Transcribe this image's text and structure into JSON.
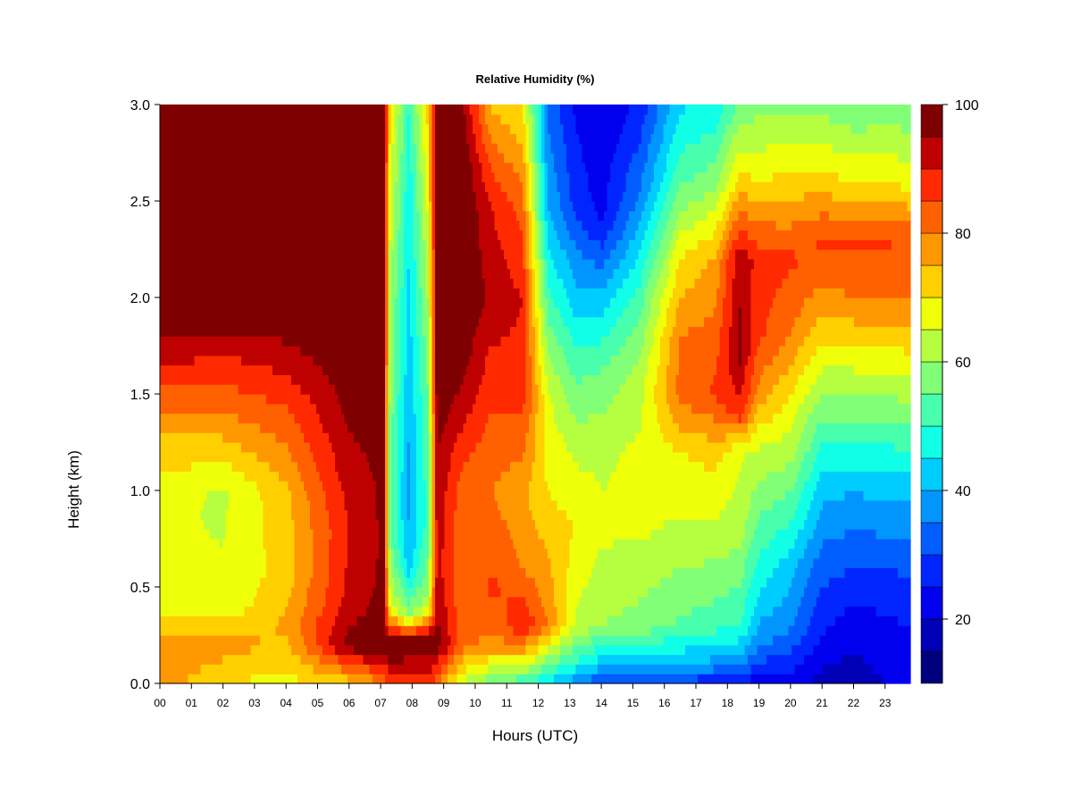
{
  "chart_data": {
    "type": "heatmap",
    "title": "Relative Humidity (%)",
    "xlabel": "Hours (UTC)",
    "ylabel": "Height (km)",
    "x_ticks": [
      "00",
      "01",
      "02",
      "03",
      "04",
      "05",
      "06",
      "07",
      "08",
      "09",
      "10",
      "11",
      "12",
      "13",
      "14",
      "15",
      "16",
      "17",
      "18",
      "19",
      "20",
      "21",
      "22",
      "23"
    ],
    "xlim": [
      0,
      23.8
    ],
    "ylim": [
      0,
      3.0
    ],
    "y_ticks": [
      "0.0",
      "0.5",
      "1.0",
      "1.5",
      "2.0",
      "2.5",
      "3.0"
    ],
    "colorbar": {
      "range": [
        10,
        100
      ],
      "step": 5,
      "ticks": [
        "20",
        "40",
        "60",
        "80",
        "100"
      ],
      "colors": [
        "#00007f",
        "#0000b6",
        "#0000ee",
        "#0025ff",
        "#005dff",
        "#0095ff",
        "#00cdff",
        "#10ffe6",
        "#48ffae",
        "#80ff77",
        "#b6ff40",
        "#eeff09",
        "#ffcf00",
        "#ff9800",
        "#ff6100",
        "#ff2a00",
        "#bf0000",
        "#7f0000"
      ]
    },
    "profiles": [
      {
        "hour": 0.0,
        "rh": [
          {
            "h": 0.0,
            "v": 78
          },
          {
            "h": 0.15,
            "v": 80
          },
          {
            "h": 0.4,
            "v": 66
          },
          {
            "h": 0.9,
            "v": 66
          },
          {
            "h": 1.3,
            "v": 75
          },
          {
            "h": 1.6,
            "v": 88
          },
          {
            "h": 1.9,
            "v": 100
          },
          {
            "h": 3.0,
            "v": 100
          }
        ]
      },
      {
        "hour": 2.0,
        "rh": [
          {
            "h": 0.0,
            "v": 70
          },
          {
            "h": 0.2,
            "v": 78
          },
          {
            "h": 0.4,
            "v": 66
          },
          {
            "h": 1.0,
            "v": 64
          },
          {
            "h": 1.4,
            "v": 80
          },
          {
            "h": 1.7,
            "v": 90
          },
          {
            "h": 1.95,
            "v": 100
          },
          {
            "h": 3.0,
            "v": 100
          }
        ]
      },
      {
        "hour": 4.0,
        "rh": [
          {
            "h": 0.0,
            "v": 68
          },
          {
            "h": 0.3,
            "v": 76
          },
          {
            "h": 0.6,
            "v": 72
          },
          {
            "h": 1.0,
            "v": 74
          },
          {
            "h": 1.4,
            "v": 84
          },
          {
            "h": 1.7,
            "v": 93
          },
          {
            "h": 1.95,
            "v": 100
          },
          {
            "h": 3.0,
            "v": 100
          }
        ]
      },
      {
        "hour": 6.0,
        "rh": [
          {
            "h": 0.0,
            "v": 72
          },
          {
            "h": 0.2,
            "v": 98
          },
          {
            "h": 0.4,
            "v": 92
          },
          {
            "h": 0.8,
            "v": 90
          },
          {
            "h": 1.3,
            "v": 95
          },
          {
            "h": 1.8,
            "v": 100
          },
          {
            "h": 3.0,
            "v": 100
          }
        ]
      },
      {
        "hour": 7.1,
        "rh": [
          {
            "h": 0.0,
            "v": 80
          },
          {
            "h": 0.2,
            "v": 100
          },
          {
            "h": 0.5,
            "v": 96
          },
          {
            "h": 1.0,
            "v": 96
          },
          {
            "h": 3.0,
            "v": 100
          }
        ]
      },
      {
        "hour": 7.3,
        "rh": [
          {
            "h": 0.0,
            "v": 88
          },
          {
            "h": 0.2,
            "v": 100
          },
          {
            "h": 0.4,
            "v": 66
          },
          {
            "h": 0.8,
            "v": 55
          },
          {
            "h": 2.0,
            "v": 60
          },
          {
            "h": 3.0,
            "v": 70
          }
        ]
      },
      {
        "hour": 7.9,
        "rh": [
          {
            "h": 0.0,
            "v": 88
          },
          {
            "h": 0.22,
            "v": 100
          },
          {
            "h": 0.35,
            "v": 60
          },
          {
            "h": 0.6,
            "v": 42
          },
          {
            "h": 1.0,
            "v": 38
          },
          {
            "h": 1.6,
            "v": 42
          },
          {
            "h": 2.5,
            "v": 46
          },
          {
            "h": 3.0,
            "v": 50
          }
        ]
      },
      {
        "hour": 8.5,
        "rh": [
          {
            "h": 0.0,
            "v": 88
          },
          {
            "h": 0.22,
            "v": 100
          },
          {
            "h": 0.4,
            "v": 62
          },
          {
            "h": 0.8,
            "v": 52
          },
          {
            "h": 1.5,
            "v": 55
          },
          {
            "h": 2.5,
            "v": 66
          },
          {
            "h": 3.0,
            "v": 72
          }
        ]
      },
      {
        "hour": 8.8,
        "rh": [
          {
            "h": 0.0,
            "v": 80
          },
          {
            "h": 0.2,
            "v": 98
          },
          {
            "h": 0.6,
            "v": 92
          },
          {
            "h": 1.2,
            "v": 95
          },
          {
            "h": 1.6,
            "v": 100
          },
          {
            "h": 3.0,
            "v": 100
          }
        ]
      },
      {
        "hour": 9.6,
        "rh": [
          {
            "h": 0.0,
            "v": 64
          },
          {
            "h": 0.2,
            "v": 82
          },
          {
            "h": 0.6,
            "v": 80
          },
          {
            "h": 1.0,
            "v": 82
          },
          {
            "h": 1.5,
            "v": 94
          },
          {
            "h": 1.9,
            "v": 100
          },
          {
            "h": 2.7,
            "v": 100
          },
          {
            "h": 3.0,
            "v": 96
          }
        ]
      },
      {
        "hour": 10.5,
        "rh": [
          {
            "h": 0.0,
            "v": 56
          },
          {
            "h": 0.2,
            "v": 78
          },
          {
            "h": 0.5,
            "v": 86
          },
          {
            "h": 1.0,
            "v": 80
          },
          {
            "h": 1.5,
            "v": 86
          },
          {
            "h": 2.0,
            "v": 94
          },
          {
            "h": 2.5,
            "v": 90
          },
          {
            "h": 3.0,
            "v": 74
          }
        ]
      },
      {
        "hour": 11.5,
        "rh": [
          {
            "h": 0.0,
            "v": 50
          },
          {
            "h": 0.15,
            "v": 74
          },
          {
            "h": 0.3,
            "v": 90
          },
          {
            "h": 0.6,
            "v": 80
          },
          {
            "h": 1.0,
            "v": 76
          },
          {
            "h": 1.5,
            "v": 88
          },
          {
            "h": 2.0,
            "v": 90
          },
          {
            "h": 2.5,
            "v": 82
          },
          {
            "h": 3.0,
            "v": 70
          }
        ]
      },
      {
        "hour": 12.3,
        "rh": [
          {
            "h": 0.0,
            "v": 44
          },
          {
            "h": 0.15,
            "v": 62
          },
          {
            "h": 0.3,
            "v": 80
          },
          {
            "h": 0.6,
            "v": 76
          },
          {
            "h": 1.0,
            "v": 70
          },
          {
            "h": 1.5,
            "v": 66
          },
          {
            "h": 2.0,
            "v": 52
          },
          {
            "h": 2.5,
            "v": 40
          },
          {
            "h": 3.0,
            "v": 34
          }
        ]
      },
      {
        "hour": 13.2,
        "rh": [
          {
            "h": 0.0,
            "v": 36
          },
          {
            "h": 0.12,
            "v": 50
          },
          {
            "h": 0.3,
            "v": 64
          },
          {
            "h": 0.8,
            "v": 70
          },
          {
            "h": 1.2,
            "v": 64
          },
          {
            "h": 1.6,
            "v": 54
          },
          {
            "h": 2.0,
            "v": 42
          },
          {
            "h": 2.5,
            "v": 28
          },
          {
            "h": 3.0,
            "v": 24
          }
        ]
      },
      {
        "hour": 14.0,
        "rh": [
          {
            "h": 0.0,
            "v": 30
          },
          {
            "h": 0.1,
            "v": 42
          },
          {
            "h": 0.3,
            "v": 60
          },
          {
            "h": 0.8,
            "v": 66
          },
          {
            "h": 1.2,
            "v": 64
          },
          {
            "h": 1.6,
            "v": 56
          },
          {
            "h": 2.0,
            "v": 42
          },
          {
            "h": 2.4,
            "v": 24
          },
          {
            "h": 3.0,
            "v": 20
          }
        ]
      },
      {
        "hour": 15.2,
        "rh": [
          {
            "h": 0.0,
            "v": 30
          },
          {
            "h": 0.1,
            "v": 42
          },
          {
            "h": 0.3,
            "v": 58
          },
          {
            "h": 0.8,
            "v": 66
          },
          {
            "h": 1.2,
            "v": 66
          },
          {
            "h": 1.6,
            "v": 62
          },
          {
            "h": 2.0,
            "v": 52
          },
          {
            "h": 2.5,
            "v": 36
          },
          {
            "h": 3.0,
            "v": 26
          }
        ]
      },
      {
        "hour": 16.5,
        "rh": [
          {
            "h": 0.0,
            "v": 28
          },
          {
            "h": 0.1,
            "v": 40
          },
          {
            "h": 0.3,
            "v": 54
          },
          {
            "h": 0.8,
            "v": 64
          },
          {
            "h": 1.2,
            "v": 70
          },
          {
            "h": 1.5,
            "v": 82
          },
          {
            "h": 1.8,
            "v": 80
          },
          {
            "h": 2.2,
            "v": 70
          },
          {
            "h": 2.6,
            "v": 54
          },
          {
            "h": 3.0,
            "v": 44
          }
        ]
      },
      {
        "hour": 17.6,
        "rh": [
          {
            "h": 0.0,
            "v": 26
          },
          {
            "h": 0.1,
            "v": 38
          },
          {
            "h": 0.3,
            "v": 52
          },
          {
            "h": 0.8,
            "v": 64
          },
          {
            "h": 1.2,
            "v": 72
          },
          {
            "h": 1.5,
            "v": 86
          },
          {
            "h": 1.8,
            "v": 82
          },
          {
            "h": 2.2,
            "v": 76
          },
          {
            "h": 2.6,
            "v": 58
          },
          {
            "h": 3.0,
            "v": 46
          }
        ]
      },
      {
        "hour": 18.4,
        "rh": [
          {
            "h": 0.0,
            "v": 24
          },
          {
            "h": 0.1,
            "v": 36
          },
          {
            "h": 0.3,
            "v": 50
          },
          {
            "h": 0.8,
            "v": 62
          },
          {
            "h": 1.2,
            "v": 66
          },
          {
            "h": 1.4,
            "v": 88
          },
          {
            "h": 1.7,
            "v": 96
          },
          {
            "h": 2.2,
            "v": 94
          },
          {
            "h": 2.6,
            "v": 72
          },
          {
            "h": 3.0,
            "v": 56
          }
        ]
      },
      {
        "hour": 19.0,
        "rh": [
          {
            "h": 0.0,
            "v": 22
          },
          {
            "h": 0.2,
            "v": 36
          },
          {
            "h": 0.5,
            "v": 46
          },
          {
            "h": 0.9,
            "v": 56
          },
          {
            "h": 1.2,
            "v": 64
          },
          {
            "h": 1.5,
            "v": 78
          },
          {
            "h": 1.8,
            "v": 86
          },
          {
            "h": 2.2,
            "v": 88
          },
          {
            "h": 2.6,
            "v": 70
          },
          {
            "h": 3.0,
            "v": 58
          }
        ]
      },
      {
        "hour": 20.0,
        "rh": [
          {
            "h": 0.0,
            "v": 22
          },
          {
            "h": 0.3,
            "v": 36
          },
          {
            "h": 0.6,
            "v": 42
          },
          {
            "h": 0.9,
            "v": 52
          },
          {
            "h": 1.2,
            "v": 62
          },
          {
            "h": 1.5,
            "v": 70
          },
          {
            "h": 1.8,
            "v": 80
          },
          {
            "h": 2.2,
            "v": 86
          },
          {
            "h": 2.6,
            "v": 72
          },
          {
            "h": 3.0,
            "v": 58
          }
        ]
      },
      {
        "hour": 21.0,
        "rh": [
          {
            "h": 0.0,
            "v": 18
          },
          {
            "h": 0.3,
            "v": 26
          },
          {
            "h": 0.6,
            "v": 32
          },
          {
            "h": 1.0,
            "v": 42
          },
          {
            "h": 1.3,
            "v": 52
          },
          {
            "h": 1.6,
            "v": 64
          },
          {
            "h": 2.0,
            "v": 78
          },
          {
            "h": 2.3,
            "v": 86
          },
          {
            "h": 2.6,
            "v": 72
          },
          {
            "h": 3.0,
            "v": 58
          }
        ]
      },
      {
        "hour": 22.0,
        "rh": [
          {
            "h": 0.0,
            "v": 17
          },
          {
            "h": 0.3,
            "v": 22
          },
          {
            "h": 0.6,
            "v": 30
          },
          {
            "h": 1.0,
            "v": 40
          },
          {
            "h": 1.3,
            "v": 52
          },
          {
            "h": 1.6,
            "v": 64
          },
          {
            "h": 2.0,
            "v": 80
          },
          {
            "h": 2.3,
            "v": 86
          },
          {
            "h": 2.6,
            "v": 70
          },
          {
            "h": 3.0,
            "v": 55
          }
        ]
      },
      {
        "hour": 23.0,
        "rh": [
          {
            "h": 0.0,
            "v": 20
          },
          {
            "h": 0.3,
            "v": 24
          },
          {
            "h": 0.6,
            "v": 30
          },
          {
            "h": 1.0,
            "v": 42
          },
          {
            "h": 1.3,
            "v": 52
          },
          {
            "h": 1.6,
            "v": 64
          },
          {
            "h": 2.0,
            "v": 80
          },
          {
            "h": 2.3,
            "v": 86
          },
          {
            "h": 2.6,
            "v": 70
          },
          {
            "h": 3.0,
            "v": 56
          }
        ]
      },
      {
        "hour": 23.8,
        "rh": [
          {
            "h": 0.0,
            "v": 21
          },
          {
            "h": 0.3,
            "v": 25
          },
          {
            "h": 0.6,
            "v": 31
          },
          {
            "h": 1.0,
            "v": 42
          },
          {
            "h": 1.3,
            "v": 54
          },
          {
            "h": 1.6,
            "v": 66
          },
          {
            "h": 2.0,
            "v": 80
          },
          {
            "h": 2.3,
            "v": 84
          },
          {
            "h": 2.6,
            "v": 68
          },
          {
            "h": 3.0,
            "v": 56
          }
        ]
      }
    ]
  }
}
